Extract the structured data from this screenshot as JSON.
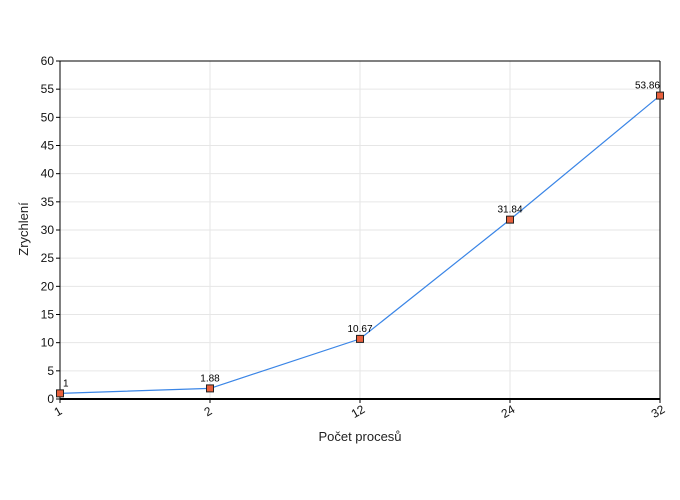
{
  "chart_data": {
    "type": "line",
    "title": "",
    "xlabel": "Počet procesů",
    "ylabel": "Zrychlení",
    "categories": [
      "1",
      "2",
      "12",
      "24",
      "32"
    ],
    "series": [
      {
        "values": [
          1,
          1.88,
          10.67,
          31.84,
          53.86
        ],
        "data_labels": [
          "1",
          "1.88",
          "10.67",
          "31.84",
          "53.86"
        ]
      }
    ],
    "ylim": [
      0,
      60
    ],
    "yticks": [
      "0",
      "5",
      "10",
      "15",
      "20",
      "25",
      "30",
      "35",
      "40",
      "45",
      "50",
      "55",
      "60"
    ],
    "grid": true,
    "legend": "none",
    "colors": {
      "line": "#3a85e6",
      "marker_fill": "#e8603c",
      "marker_edge": "#222222",
      "grid": "#e6e6e6",
      "axis": "#000000"
    }
  }
}
